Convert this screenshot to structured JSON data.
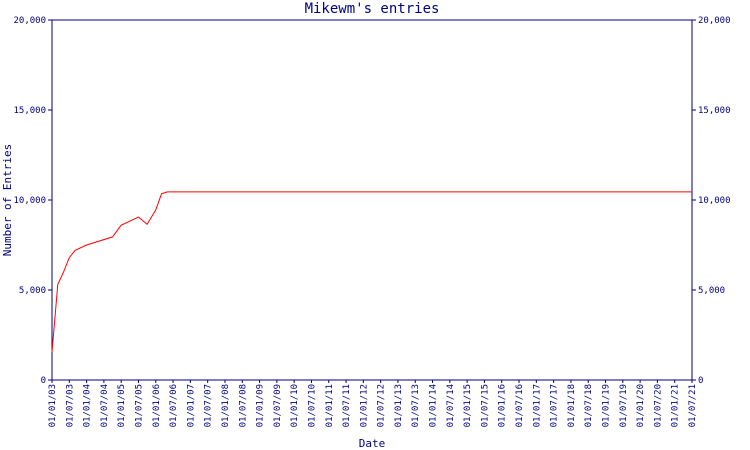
{
  "chart_data": {
    "type": "line",
    "title": "Mikewm's entries",
    "y_label": "Number of Entries",
    "x_label": "Date",
    "x": [
      "01/01/03",
      "01/03/03",
      "01/05/03",
      "01/07/03",
      "01/09/03",
      "01/01/04",
      "01/10/04",
      "01/01/05",
      "01/07/05",
      "01/10/05",
      "01/01/06",
      "01/03/06",
      "01/05/06",
      "01/07/21"
    ],
    "series": [
      {
        "name": "Entries",
        "color": "#ff0000",
        "values": [
          1550,
          5300,
          6000,
          6800,
          7200,
          7500,
          7950,
          8600,
          9050,
          8650,
          9450,
          10350,
          10450,
          10450
        ]
      }
    ],
    "xlim": [
      "01/01/03",
      "01/07/21"
    ],
    "xticks": [
      "01/01/03",
      "01/07/03",
      "01/01/04",
      "01/07/04",
      "01/01/05",
      "01/07/05",
      "01/01/06",
      "01/07/06",
      "01/01/07",
      "01/07/07",
      "01/01/08",
      "01/07/08",
      "01/01/09",
      "01/07/09",
      "01/01/10",
      "01/07/10",
      "01/01/11",
      "01/07/11",
      "01/01/12",
      "01/07/12",
      "01/01/13",
      "01/07/13",
      "01/01/14",
      "01/07/14",
      "01/01/15",
      "01/07/15",
      "01/01/16",
      "01/07/16",
      "01/01/17",
      "01/07/17",
      "01/01/18",
      "01/07/18",
      "01/01/19",
      "01/07/19",
      "01/01/20",
      "01/07/20",
      "01/01/21",
      "01/07/21"
    ],
    "ylim": [
      0,
      20000
    ],
    "yticks": [
      0,
      {
        "value": 5000,
        "label": "5,000"
      },
      {
        "value": 10000,
        "label": "10,000"
      },
      {
        "value": 15000,
        "label": "15,000"
      },
      {
        "value": 20000,
        "label": "20,000"
      }
    ],
    "axis_color": "#000080"
  }
}
